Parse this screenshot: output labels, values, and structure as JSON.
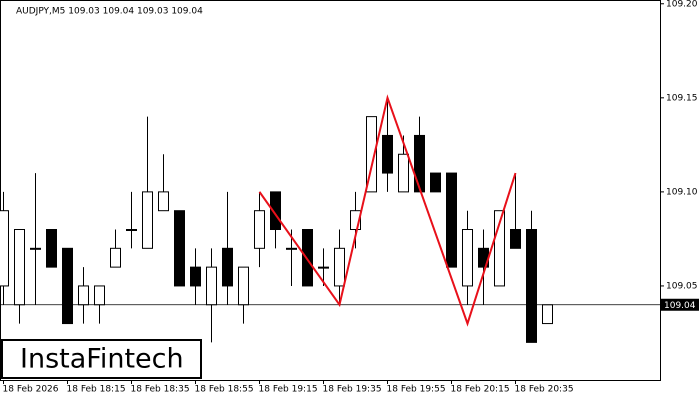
{
  "chart_data": {
    "type": "candlestick",
    "title": "AUDJPY,M5  109.03 109.04 109.03 109.04",
    "categories": [
      "18 Feb 2026",
      null,
      null,
      null,
      "18 Feb 18:15",
      null,
      null,
      null,
      "18 Feb 18:35",
      null,
      null,
      null,
      "18 Feb 18:55",
      null,
      null,
      null,
      "18 Feb 19:15",
      null,
      null,
      null,
      "18 Feb 19:35",
      null,
      null,
      null,
      "18 Feb 19:55",
      null,
      null,
      null,
      "18 Feb 20:15",
      null,
      null,
      null,
      "18 Feb 20:35",
      null,
      null
    ],
    "open": [
      109.05,
      109.04,
      109.07,
      109.08,
      109.07,
      109.04,
      109.04,
      109.06,
      109.08,
      109.07,
      109.09,
      109.09,
      109.06,
      109.04,
      109.07,
      109.04,
      109.07,
      109.1,
      109.07,
      109.08,
      109.06,
      109.05,
      109.08,
      109.1,
      109.13,
      109.1,
      109.13,
      109.11,
      109.11,
      109.05,
      109.07,
      109.05,
      109.08,
      109.08,
      109.03
    ],
    "high": [
      109.1,
      109.08,
      109.11,
      109.08,
      109.07,
      109.06,
      109.05,
      109.08,
      109.1,
      109.14,
      109.12,
      109.09,
      109.07,
      109.07,
      109.1,
      109.06,
      109.1,
      109.1,
      109.08,
      109.08,
      109.07,
      109.08,
      109.1,
      109.14,
      109.15,
      109.13,
      109.14,
      109.11,
      109.11,
      109.09,
      109.08,
      109.09,
      109.11,
      109.09,
      109.04
    ],
    "low": [
      109.04,
      109.03,
      109.04,
      109.06,
      109.03,
      109.03,
      109.03,
      109.06,
      109.07,
      109.07,
      109.09,
      109.05,
      109.04,
      109.02,
      109.04,
      109.03,
      109.06,
      109.07,
      109.05,
      109.05,
      109.05,
      109.04,
      109.07,
      109.1,
      109.1,
      109.1,
      109.1,
      109.1,
      109.06,
      109.04,
      109.04,
      109.05,
      109.07,
      109.02,
      109.03
    ],
    "close": [
      109.09,
      109.08,
      109.07,
      109.06,
      109.03,
      109.05,
      109.05,
      109.07,
      109.08,
      109.1,
      109.1,
      109.05,
      109.05,
      109.06,
      109.05,
      109.06,
      109.09,
      109.08,
      109.07,
      109.05,
      109.06,
      109.07,
      109.09,
      109.14,
      109.11,
      109.12,
      109.1,
      109.1,
      109.06,
      109.08,
      109.06,
      109.09,
      109.07,
      109.02,
      109.04
    ],
    "up_color": "#ffffff",
    "down_color": "#000000",
    "ylim": [
      109.0,
      109.202
    ],
    "yticks": [
      {
        "value": 109.05,
        "label": "109.05"
      },
      {
        "value": 109.1,
        "label": "109.10"
      },
      {
        "value": 109.15,
        "label": "109.15"
      },
      {
        "value": 109.2,
        "label": "109.20"
      }
    ],
    "last_price": 109.04,
    "pattern": {
      "color": "#e8101a",
      "x": [
        16,
        21,
        24,
        29,
        32
      ],
      "values": [
        109.1,
        109.04,
        109.15,
        109.03,
        109.11
      ]
    }
  },
  "logo": "InstaFintech"
}
